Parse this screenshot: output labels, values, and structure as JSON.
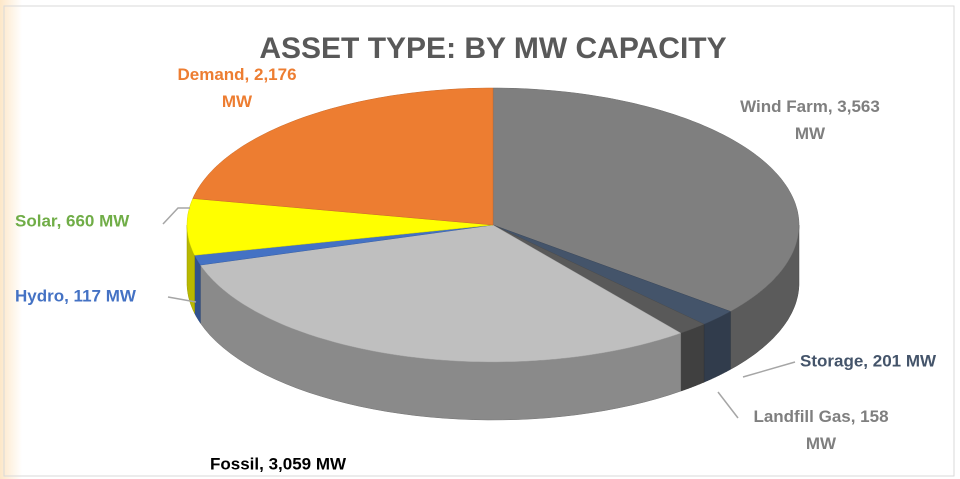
{
  "chart_data": {
    "type": "pie",
    "title": "ASSET TYPE: BY MW CAPACITY",
    "values": [
      3563,
      201,
      158,
      3059,
      117,
      660,
      2176
    ],
    "value_labels": [
      "Wind Farm, 3,563 MW",
      "Storage, 201 MW",
      "Landfill Gas, 158 MW",
      "Fossil, 3,059 MW",
      "Hydro, 117 MW",
      "Solar, 660 MW",
      "Demand, 2,176 MW"
    ],
    "colors": [
      "#7f7f7f",
      "#44546a",
      "#595959",
      "#bfbfbf",
      "#4472c4",
      "#ffff00",
      "#ed7d31"
    ],
    "label_colors": [
      "#7f7f7f",
      "#44546a",
      "#7f7f7f",
      "#000000",
      "#4472c4",
      "#70ad47",
      "#ed7d31"
    ]
  }
}
